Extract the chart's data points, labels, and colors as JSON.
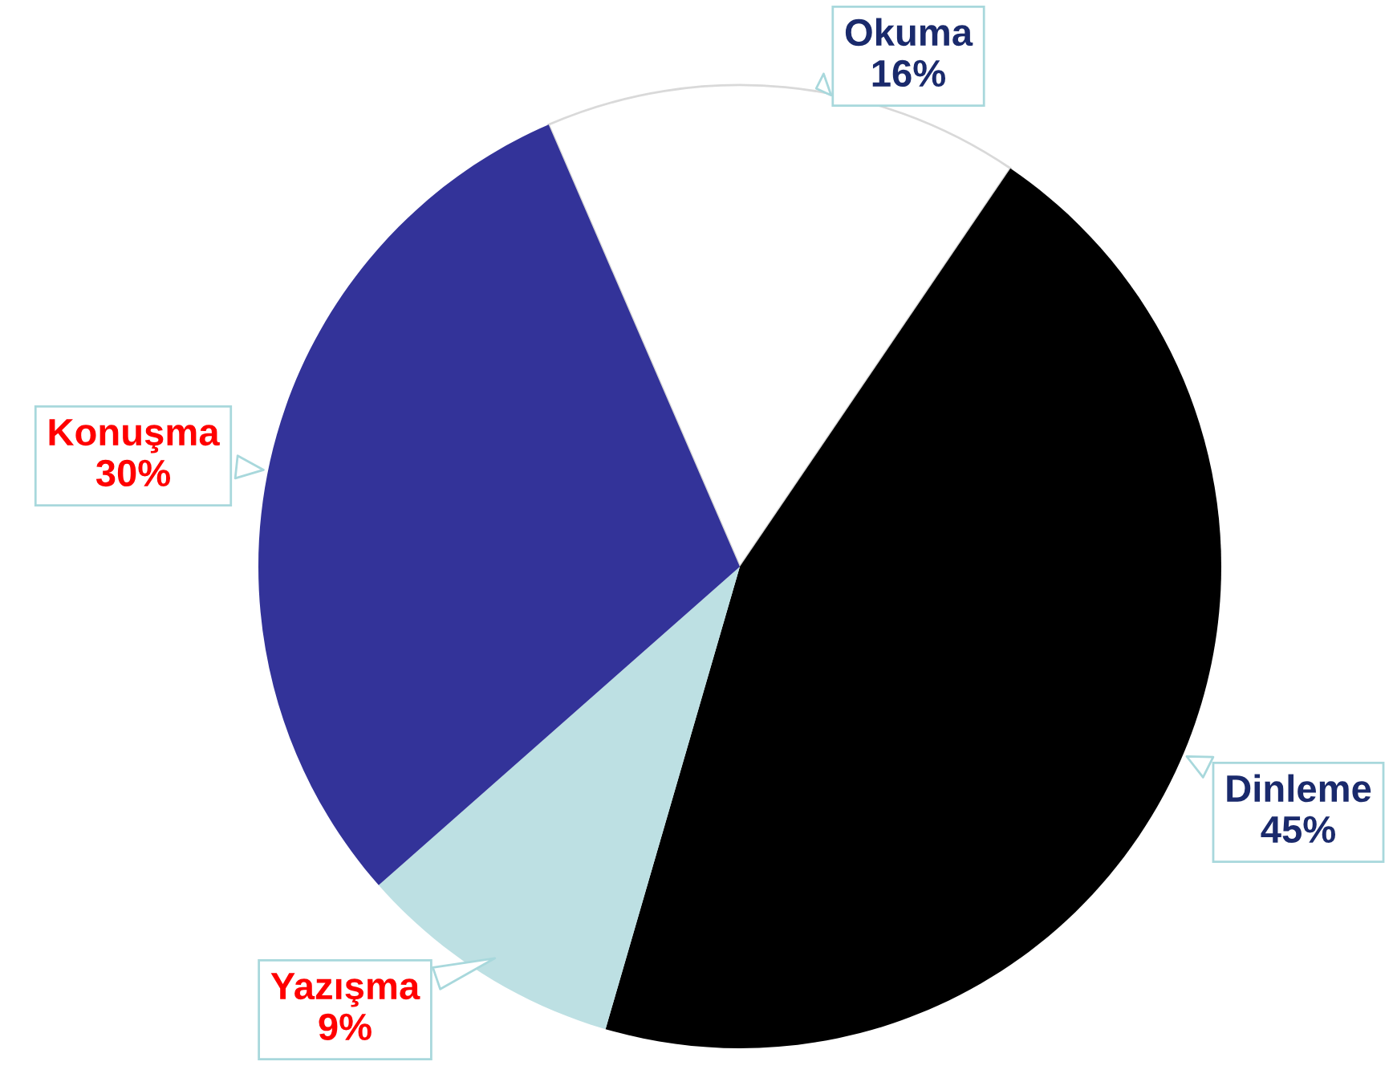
{
  "chart_data": {
    "type": "pie",
    "categories": [
      "Okuma",
      "Dinleme",
      "Yazışma",
      "Konuşma"
    ],
    "values": [
      16,
      45,
      9,
      30
    ],
    "colors": [
      "#ffffff",
      "#000000",
      "#bde0e3",
      "#333399"
    ],
    "value_labels": [
      "16%",
      "45%",
      "9%",
      "30%"
    ],
    "legend": false
  }
}
